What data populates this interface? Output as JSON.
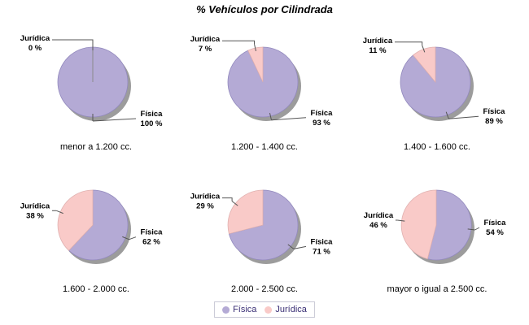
{
  "title": "% Vehículos por Cilindrada",
  "legend": {
    "items": [
      {
        "label": "Física",
        "color": "#B4AAD5"
      },
      {
        "label": "Jurídica",
        "color": "#F9CAC8"
      }
    ]
  },
  "chart_data": {
    "type": "pie",
    "title": "% Vehículos por Cilindrada",
    "series_names": [
      "Física",
      "Jurídica"
    ],
    "colors": {
      "Física": "#B4AAD5",
      "Jurídica": "#F9CAC8"
    },
    "shadow_color": "#9C9C9C",
    "percent_suffix": " %",
    "legend_position": "bottom-center",
    "charts": [
      {
        "category": "menor a 1.200 cc.",
        "values": {
          "Física": 100,
          "Jurídica": 0
        }
      },
      {
        "category": "1.200 - 1.400 cc.",
        "values": {
          "Física": 93,
          "Jurídica": 7
        }
      },
      {
        "category": "1.400 - 1.600 cc.",
        "values": {
          "Física": 89,
          "Jurídica": 11
        }
      },
      {
        "category": "1.600 - 2.000 cc.",
        "values": {
          "Física": 62,
          "Jurídica": 38
        }
      },
      {
        "category": "2.000 - 2.500 cc.",
        "values": {
          "Física": 71,
          "Jurídica": 29
        }
      },
      {
        "category": "mayor o igual a 2.500 cc.",
        "values": {
          "Física": 54,
          "Jurídica": 46
        }
      }
    ]
  }
}
